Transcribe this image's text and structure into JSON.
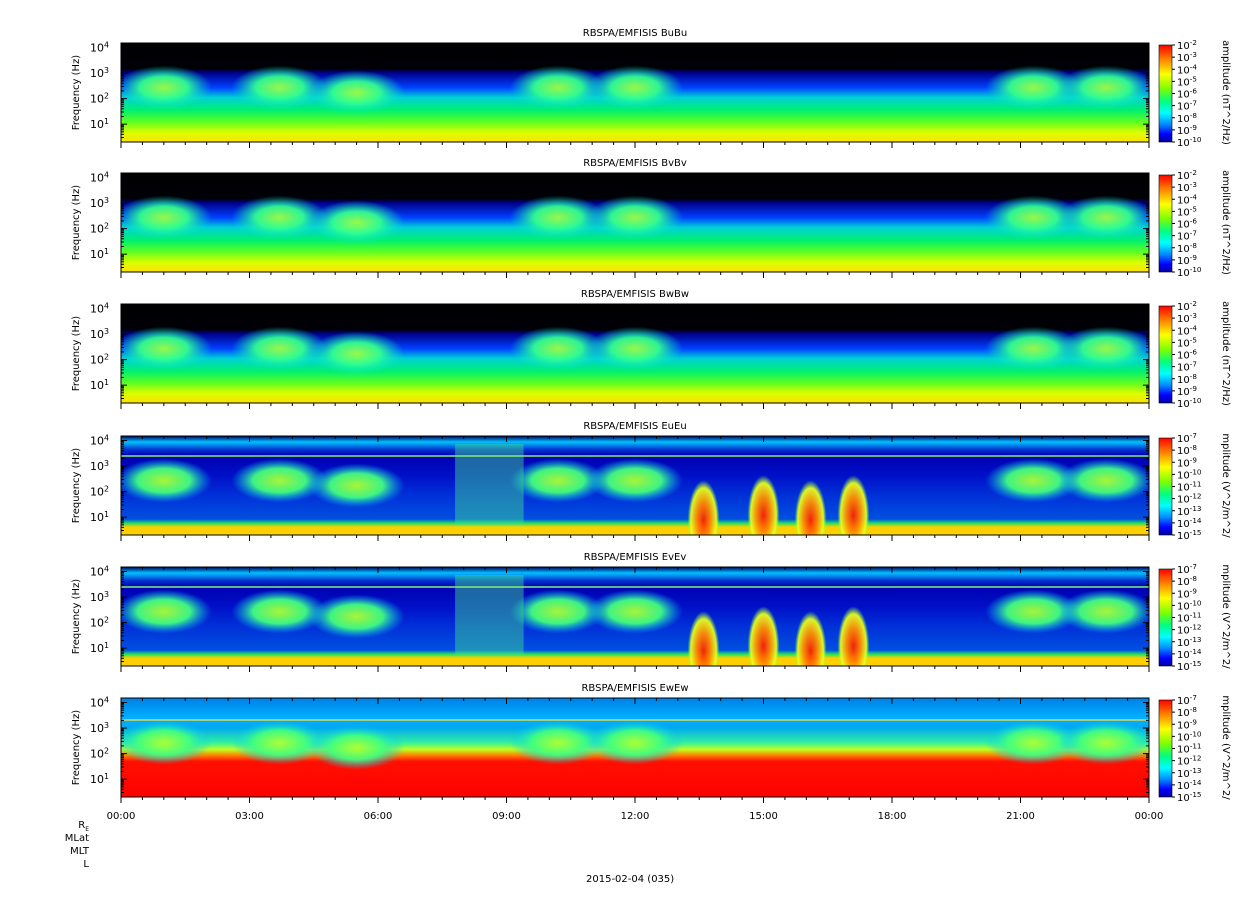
{
  "chart_data": [
    {
      "type": "heatmap",
      "title": "RBSPA/EMFISIS  BuBu",
      "ylabel": "Frequency (Hz)",
      "yscale": "log",
      "ylim": [
        2,
        15000
      ],
      "yticks": [
        "10^1",
        "10^2",
        "10^3",
        "10^4"
      ],
      "colorbar": {
        "label": "amplitude (nT^2/Hz)",
        "scale": "log",
        "range": [
          "10^-10",
          "10^-2"
        ],
        "ticks": [
          "10^-2",
          "10^-3",
          "10^-4",
          "10^-5",
          "10^-6",
          "10^-7",
          "10^-8",
          "10^-9",
          "10^-10"
        ]
      }
    },
    {
      "type": "heatmap",
      "title": "RBSPA/EMFISIS  BvBv",
      "ylabel": "Frequency (Hz)",
      "yscale": "log",
      "ylim": [
        2,
        15000
      ],
      "yticks": [
        "10^1",
        "10^2",
        "10^3",
        "10^4"
      ],
      "colorbar": {
        "label": "amplitude (nT^2/Hz)",
        "scale": "log",
        "range": [
          "10^-10",
          "10^-2"
        ],
        "ticks": [
          "10^-2",
          "10^-3",
          "10^-4",
          "10^-5",
          "10^-6",
          "10^-7",
          "10^-8",
          "10^-9",
          "10^-10"
        ]
      }
    },
    {
      "type": "heatmap",
      "title": "RBSPA/EMFISIS  BwBw",
      "ylabel": "Frequency (Hz)",
      "yscale": "log",
      "ylim": [
        2,
        15000
      ],
      "yticks": [
        "10^1",
        "10^2",
        "10^3",
        "10^4"
      ],
      "colorbar": {
        "label": "amplitude (nT^2/Hz)",
        "scale": "log",
        "range": [
          "10^-10",
          "10^-2"
        ],
        "ticks": [
          "10^-2",
          "10^-3",
          "10^-4",
          "10^-5",
          "10^-6",
          "10^-7",
          "10^-8",
          "10^-9",
          "10^-10"
        ]
      }
    },
    {
      "type": "heatmap",
      "title": "RBSPA/EMFISIS  EuEu",
      "ylabel": "Frequency (Hz)",
      "yscale": "log",
      "ylim": [
        2,
        15000
      ],
      "yticks": [
        "10^1",
        "10^2",
        "10^3",
        "10^4"
      ],
      "colorbar": {
        "label": "mplitude (V^2/m^2/",
        "scale": "log",
        "range": [
          "10^-15",
          "10^-7"
        ],
        "ticks": [
          "10^-7",
          "10^-8",
          "10^-9",
          "10^-10",
          "10^-11",
          "10^-12",
          "10^-13",
          "10^-14",
          "10^-15"
        ]
      }
    },
    {
      "type": "heatmap",
      "title": "RBSPA/EMFISIS  EvEv",
      "ylabel": "Frequency (Hz)",
      "yscale": "log",
      "ylim": [
        2,
        15000
      ],
      "yticks": [
        "10^1",
        "10^2",
        "10^3",
        "10^4"
      ],
      "colorbar": {
        "label": "mplitude (V^2/m^2/",
        "scale": "log",
        "range": [
          "10^-15",
          "10^-7"
        ],
        "ticks": [
          "10^-7",
          "10^-8",
          "10^-9",
          "10^-10",
          "10^-11",
          "10^-12",
          "10^-13",
          "10^-14",
          "10^-15"
        ]
      }
    },
    {
      "type": "heatmap",
      "title": "RBSPA/EMFISIS  EwEw",
      "ylabel": "Frequency (Hz)",
      "yscale": "log",
      "ylim": [
        2,
        15000
      ],
      "yticks": [
        "10^1",
        "10^2",
        "10^3",
        "10^4"
      ],
      "colorbar": {
        "label": "mplitude (V^2/m^2/",
        "scale": "log",
        "range": [
          "10^-15",
          "10^-7"
        ],
        "ticks": [
          "10^-7",
          "10^-8",
          "10^-9",
          "10^-10",
          "10^-11",
          "10^-12",
          "10^-13",
          "10^-14",
          "10^-15"
        ]
      }
    }
  ],
  "x_axis": {
    "range": [
      "2015-02-04 00:00",
      "2015-02-05 00:00"
    ],
    "tick_hours": [
      0,
      3,
      6,
      9,
      12,
      15,
      18,
      21,
      24
    ],
    "tick_labels": [
      "00:00",
      "03:00",
      "06:00",
      "09:00",
      "12:00",
      "15:00",
      "18:00",
      "21:00",
      "00:00"
    ]
  },
  "ephemeris_labels": [
    "RE",
    "MLat",
    "MLT",
    "L"
  ],
  "date_label": "2015-02-04 (035)"
}
